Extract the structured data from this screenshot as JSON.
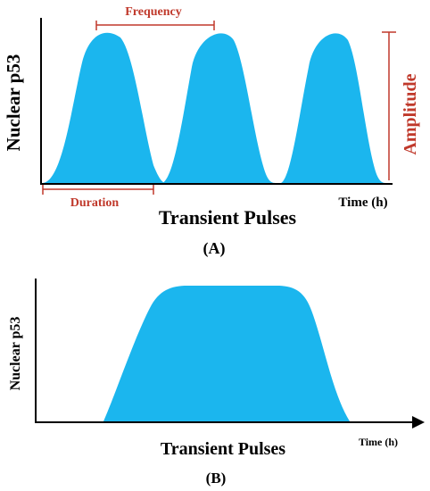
{
  "panel_a": {
    "y_axis_label": "Nuclear p53",
    "x_axis_label": "Time (h)",
    "title": "Transient Pulses",
    "caption": "(A)",
    "annotations": {
      "frequency": "Frequency",
      "duration": "Duration",
      "amplitude": "Amplitude"
    }
  },
  "panel_b": {
    "y_axis_label": "Nuclear p53",
    "x_axis_label": "Time (h)",
    "title": "Transient Pulses",
    "caption": "(B)"
  },
  "colors": {
    "pulse_fill": "#1BB6EE",
    "axis": "#000000",
    "annotation": "#C0392B",
    "text": "#000000"
  }
}
